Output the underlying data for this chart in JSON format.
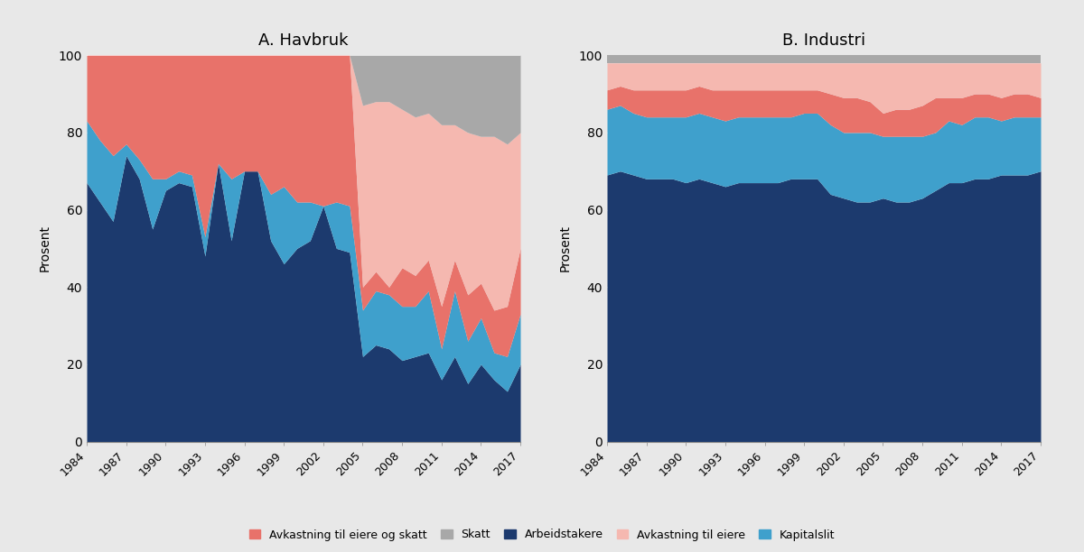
{
  "years": [
    1984,
    1985,
    1986,
    1987,
    1988,
    1989,
    1990,
    1991,
    1992,
    1993,
    1994,
    1995,
    1996,
    1997,
    1998,
    1999,
    2000,
    2001,
    2002,
    2003,
    2004,
    2005,
    2006,
    2007,
    2008,
    2009,
    2010,
    2011,
    2012,
    2013,
    2014,
    2015,
    2016,
    2017
  ],
  "havbruk": {
    "arbeidstakere": [
      67,
      62,
      57,
      74,
      68,
      55,
      65,
      67,
      66,
      48,
      72,
      52,
      70,
      70,
      52,
      46,
      50,
      52,
      61,
      50,
      49,
      22,
      25,
      24,
      21,
      22,
      23,
      16,
      22,
      15,
      20,
      16,
      13,
      20
    ],
    "kapitalslit": [
      16,
      16,
      17,
      3,
      5,
      13,
      3,
      3,
      3,
      5,
      0,
      16,
      0,
      0,
      12,
      20,
      12,
      10,
      0,
      12,
      12,
      12,
      14,
      14,
      14,
      13,
      16,
      8,
      17,
      11,
      12,
      7,
      9,
      13
    ],
    "avkastning_eiere_og_skatt": [
      17,
      22,
      26,
      23,
      27,
      32,
      32,
      30,
      31,
      47,
      28,
      32,
      30,
      30,
      36,
      34,
      38,
      38,
      39,
      38,
      39,
      6,
      5,
      2,
      10,
      8,
      8,
      11,
      8,
      12,
      9,
      11,
      13,
      17
    ],
    "avkastning_eiere": [
      0,
      0,
      0,
      0,
      0,
      0,
      0,
      0,
      0,
      0,
      0,
      0,
      0,
      0,
      0,
      0,
      0,
      0,
      0,
      0,
      0,
      47,
      44,
      48,
      41,
      41,
      38,
      47,
      35,
      42,
      38,
      45,
      42,
      30
    ],
    "skatt": [
      0,
      0,
      0,
      0,
      0,
      0,
      0,
      0,
      0,
      0,
      0,
      0,
      0,
      0,
      0,
      0,
      0,
      0,
      0,
      0,
      0,
      13,
      12,
      12,
      14,
      16,
      15,
      18,
      18,
      20,
      21,
      21,
      23,
      20
    ]
  },
  "industri": {
    "arbeidstakere": [
      69,
      70,
      69,
      68,
      68,
      68,
      67,
      68,
      67,
      66,
      67,
      67,
      67,
      67,
      68,
      68,
      68,
      64,
      63,
      62,
      62,
      63,
      62,
      62,
      63,
      65,
      67,
      67,
      68,
      68,
      69,
      69,
      69,
      70
    ],
    "kapitalslit": [
      17,
      17,
      16,
      16,
      16,
      16,
      17,
      17,
      17,
      17,
      17,
      17,
      17,
      17,
      16,
      17,
      17,
      18,
      17,
      18,
      18,
      16,
      17,
      17,
      16,
      15,
      16,
      15,
      16,
      16,
      14,
      15,
      15,
      14
    ],
    "avkastning_eiere_og_skatt": [
      5,
      5,
      6,
      7,
      7,
      7,
      7,
      7,
      7,
      8,
      7,
      7,
      7,
      7,
      7,
      6,
      6,
      8,
      9,
      9,
      8,
      6,
      7,
      7,
      8,
      9,
      6,
      7,
      6,
      6,
      6,
      6,
      6,
      5
    ],
    "avkastning_eiere": [
      7,
      6,
      7,
      7,
      7,
      7,
      7,
      6,
      7,
      7,
      7,
      7,
      7,
      7,
      7,
      7,
      7,
      8,
      9,
      9,
      10,
      13,
      12,
      12,
      11,
      9,
      9,
      9,
      8,
      8,
      9,
      8,
      8,
      9
    ],
    "skatt": [
      2,
      2,
      2,
      2,
      2,
      2,
      2,
      2,
      2,
      2,
      2,
      2,
      2,
      2,
      2,
      2,
      2,
      2,
      2,
      2,
      2,
      2,
      2,
      2,
      2,
      2,
      2,
      2,
      2,
      2,
      2,
      2,
      2,
      2
    ]
  },
  "colors": {
    "avkastning_eiere_og_skatt": "#e8726a",
    "skatt": "#a8a8a8",
    "arbeidstakere": "#1c3a6e",
    "avkastning_eiere": "#f5b8b0",
    "kapitalslit": "#3fa0cc"
  },
  "background_color": "#e8e8e8",
  "title_a": "A. Havbruk",
  "title_b": "B. Industri",
  "ylabel": "Prosent",
  "ylim": [
    0,
    100
  ],
  "legend_labels": [
    "Avkastning til eiere og skatt",
    "Skatt",
    "Arbeidstakere",
    "Avkastning til eiere",
    "Kapitalslit"
  ]
}
